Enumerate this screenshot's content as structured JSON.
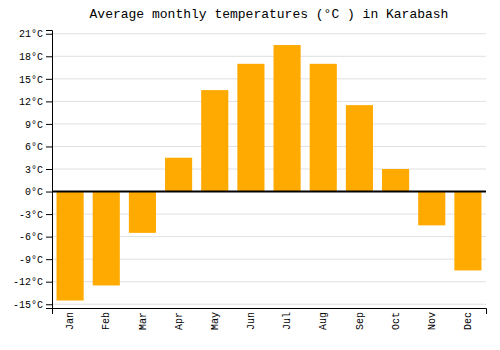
{
  "chart_data": {
    "type": "bar",
    "title": "Average monthly temperatures (°C ) in Karabash",
    "categories": [
      "Jan",
      "Feb",
      "Mar",
      "Apr",
      "May",
      "Jun",
      "Jul",
      "Aug",
      "Sep",
      "Oct",
      "Nov",
      "Dec"
    ],
    "values": [
      -14.5,
      -12.5,
      -5.5,
      4.5,
      13.5,
      17.0,
      19.5,
      17.0,
      11.5,
      3.0,
      -4.5,
      -10.5
    ],
    "color": "#FFAA00",
    "ylim": [
      -15.5,
      21.5
    ],
    "yticks": [
      {
        "value": -15,
        "label": "-15°C"
      },
      {
        "value": -12,
        "label": "-12°C"
      },
      {
        "value": -9,
        "label": "-9°C"
      },
      {
        "value": -6,
        "label": "-6°C"
      },
      {
        "value": -3,
        "label": "-3°C"
      },
      {
        "value": 0,
        "label": "0°C"
      },
      {
        "value": 3,
        "label": "3°C"
      },
      {
        "value": 6,
        "label": "6°C"
      },
      {
        "value": 9,
        "label": "9°C"
      },
      {
        "value": 12,
        "label": "12°C"
      },
      {
        "value": 15,
        "label": "15°C"
      },
      {
        "value": 18,
        "label": "18°C"
      },
      {
        "value": 21,
        "label": "21°C"
      }
    ],
    "grid": true
  }
}
